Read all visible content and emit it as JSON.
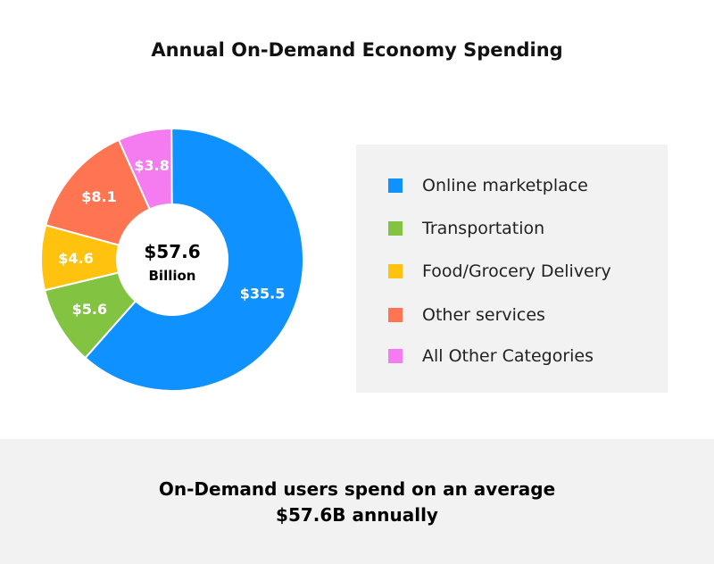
{
  "title": "Annual On-Demand Economy Spending",
  "chart_data": {
    "type": "pie",
    "title": "Annual On-Demand Economy Spending",
    "center_value": "$57.6",
    "center_unit": "Billion",
    "slices": [
      {
        "name": "Online marketplace",
        "value": 35.5,
        "label": "$35.5",
        "color": "#0f91ff"
      },
      {
        "name": "Transportation",
        "value": 5.6,
        "label": "$5.6",
        "color": "#82c341"
      },
      {
        "name": "Food/Grocery Delivery",
        "value": 4.6,
        "label": "$4.6",
        "color": "#ffc20e"
      },
      {
        "name": "Other services",
        "value": 8.1,
        "label": "$8.1",
        "color": "#ff7552"
      },
      {
        "name": "All Other Categories",
        "value": 3.8,
        "label": "$3.8",
        "color": "#f57cf0"
      }
    ],
    "legend_position": "right"
  },
  "legend": {
    "items": [
      {
        "label": "Online marketplace",
        "color": "#0f91ff"
      },
      {
        "label": "Transportation",
        "color": "#82c341"
      },
      {
        "label": "Food/Grocery Delivery",
        "color": "#ffc20e"
      },
      {
        "label": "Other services",
        "color": "#ff7552"
      },
      {
        "label": "All Other Categories",
        "color": "#f57cf0"
      }
    ]
  },
  "footer": {
    "line1": "On-Demand users spend on an average",
    "line2": "$57.6B annually"
  }
}
